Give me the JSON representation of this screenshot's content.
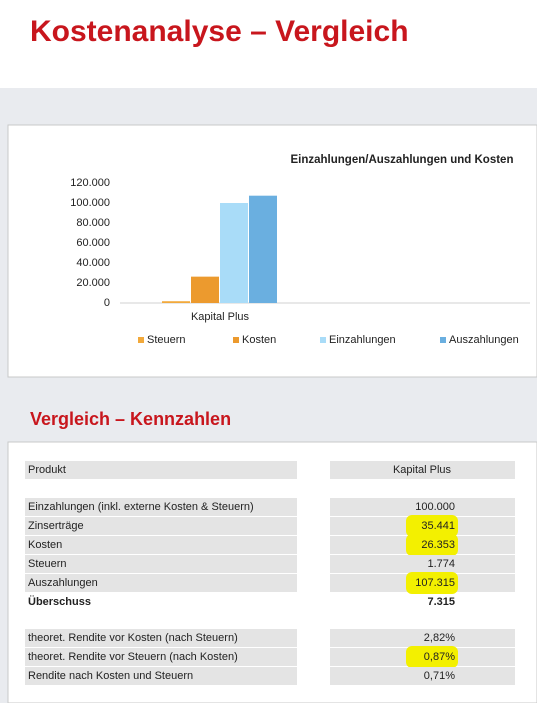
{
  "header": {
    "title": "Kostenanalyse – Vergleich"
  },
  "chart_data": {
    "type": "bar",
    "title": "Einzahlungen/Auszahlungen und Kosten",
    "categories": [
      "Kapital Plus"
    ],
    "series": [
      {
        "name": "Steuern",
        "color": "#f2a93b",
        "values": [
          1774
        ]
      },
      {
        "name": "Kosten",
        "color": "#ec9a2e",
        "values": [
          26353
        ]
      },
      {
        "name": "Einzahlungen",
        "color": "#a9dcf8",
        "values": [
          100000
        ]
      },
      {
        "name": "Auszahlungen",
        "color": "#6aafe0",
        "values": [
          107315
        ]
      }
    ],
    "ylim": [
      0,
      120000
    ],
    "yticks": [
      0,
      {
        "value": 20000,
        "label": "20.000"
      },
      {
        "value": 40000,
        "label": "40.000"
      },
      {
        "value": 60000,
        "label": "60.000"
      },
      {
        "value": 80000,
        "label": "80.000"
      },
      {
        "value": 100000,
        "label": "100.000"
      },
      {
        "value": 120000,
        "label": "120.000"
      }
    ],
    "grid": false,
    "legend": "bottom"
  },
  "section": {
    "title": "Vergleich – Kennzahlen"
  },
  "table": {
    "header": {
      "label": "Produkt",
      "value": "Kapital Plus"
    },
    "groups": [
      [
        {
          "label": "Einzahlungen (inkl. externe Kosten & Steuern)",
          "value": "100.000",
          "highlight": false,
          "bold": false
        },
        {
          "label": "Zinserträge",
          "value": "35.441",
          "highlight": true,
          "bold": false
        },
        {
          "label": "Kosten",
          "value": "26.353",
          "highlight": true,
          "bold": false
        },
        {
          "label": "Steuern",
          "value": "1.774",
          "highlight": false,
          "bold": false
        },
        {
          "label": "Auszahlungen",
          "value": "107.315",
          "highlight": true,
          "bold": false
        },
        {
          "label": "Überschuss",
          "value": "7.315",
          "highlight": false,
          "bold": true
        }
      ],
      [
        {
          "label": "theoret. Rendite vor Kosten (nach Steuern)",
          "value": "2,82%",
          "highlight": false,
          "bold": false
        },
        {
          "label": "theoret. Rendite vor Steuern (nach Kosten)",
          "value": "0,87%",
          "highlight": true,
          "bold": false
        },
        {
          "label": "Rendite nach Kosten und Steuern",
          "value": "0,71%",
          "highlight": false,
          "bold": false
        }
      ]
    ]
  }
}
